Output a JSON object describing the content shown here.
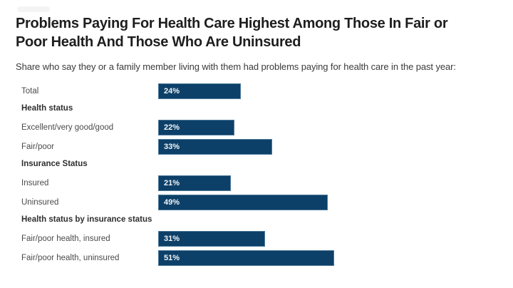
{
  "page": {
    "title_lines": [
      "Problems Paying For Health Care Highest Among Those In Fair or",
      "Poor Health And Those Who Are Uninsured"
    ],
    "subtitle": "Share who say they or a family member living with them had problems paying for health care in the past year:"
  },
  "colors": {
    "bar_fill": "#0d4068",
    "bar_border": "rgba(127,168,196,0.55)",
    "value_text": "#f2f6f9",
    "title_text": "#1e1e1e",
    "label_text": "#4a4a4a"
  },
  "chart_data": {
    "type": "bar",
    "orientation": "horizontal",
    "value_suffix": "%",
    "xlim": [
      0,
      100
    ],
    "grid": false,
    "legend": false,
    "title": "Problems Paying For Health Care Highest Among Those In Fair or Poor Health And Those Who Are Uninsured",
    "xlabel": "",
    "ylabel": "",
    "rows": [
      {
        "kind": "bar",
        "label": "Total",
        "value": 24
      },
      {
        "kind": "header",
        "label": "Health status"
      },
      {
        "kind": "bar",
        "label": "Excellent/very good/good",
        "value": 22
      },
      {
        "kind": "bar",
        "label": "Fair/poor",
        "value": 33
      },
      {
        "kind": "header",
        "label": "Insurance Status"
      },
      {
        "kind": "bar",
        "label": "Insured",
        "value": 21
      },
      {
        "kind": "bar",
        "label": "Uninsured",
        "value": 49
      },
      {
        "kind": "header",
        "label": "Health status by insurance status"
      },
      {
        "kind": "bar",
        "label": "Fair/poor health, insured",
        "value": 31
      },
      {
        "kind": "bar",
        "label": "Fair/poor health, uninsured",
        "value": 51
      }
    ]
  }
}
